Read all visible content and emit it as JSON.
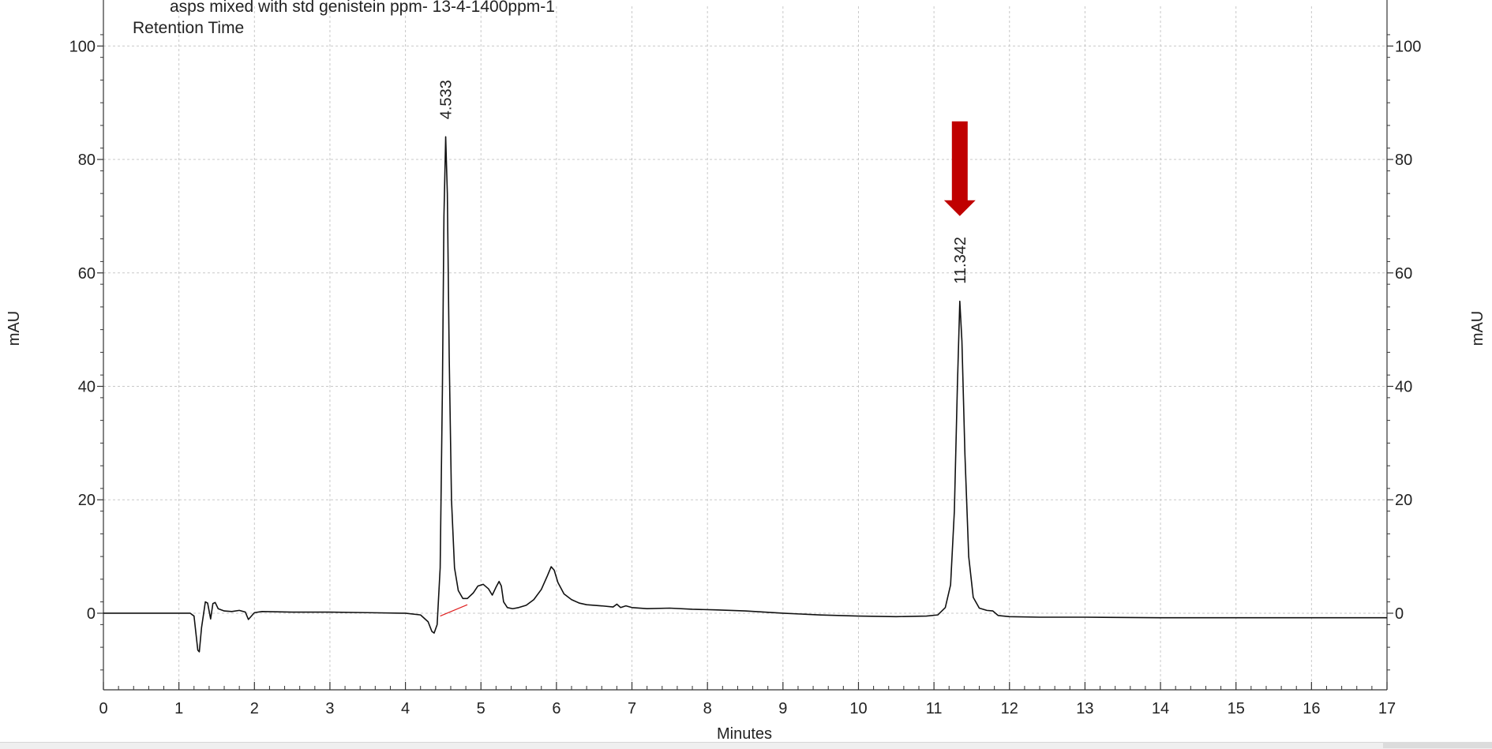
{
  "header": {
    "sample_name": "asps mixed with std genistein ppm- 13-4-1400ppm-1",
    "trace_label": "Retention Time"
  },
  "chart_data": {
    "type": "line",
    "title": "",
    "xlabel": "Minutes",
    "ylabel": "mAU",
    "ylabel_right": "mAU",
    "xlim": [
      0,
      17
    ],
    "ylim": [
      -13.5,
      107
    ],
    "x_ticks": [
      0,
      1,
      2,
      3,
      4,
      5,
      6,
      7,
      8,
      9,
      10,
      11,
      12,
      13,
      14,
      15,
      16,
      17
    ],
    "y_ticks": [
      0,
      20,
      40,
      60,
      80,
      100
    ],
    "grid": true,
    "legend": "none",
    "colors": {
      "trace": "#111111",
      "baseline": "#e02020",
      "arrow": "#c00000",
      "grid": "#c8c8c8"
    },
    "series": [
      {
        "x": [
          0,
          1.0,
          1.15,
          1.2,
          1.25,
          1.27,
          1.3,
          1.35,
          1.38,
          1.42,
          1.45,
          1.48,
          1.52,
          1.6,
          1.7,
          1.8,
          1.88,
          1.92,
          2.0,
          2.1,
          2.5,
          3.0,
          3.5,
          4.0,
          4.2,
          4.3,
          4.35,
          4.38,
          4.42,
          4.46,
          4.49,
          4.51,
          4.533,
          4.555,
          4.58,
          4.61,
          4.65,
          4.7,
          4.76,
          4.82,
          4.9,
          4.96,
          5.03,
          5.1,
          5.15,
          5.2,
          5.24,
          5.27,
          5.3,
          5.35,
          5.42,
          5.5,
          5.6,
          5.7,
          5.8,
          5.88,
          5.93,
          5.97,
          6.02,
          6.1,
          6.2,
          6.3,
          6.4,
          6.6,
          6.75,
          6.8,
          6.85,
          6.92,
          7.0,
          7.2,
          7.5,
          7.8,
          8.1,
          8.5,
          9.0,
          9.5,
          10.0,
          10.5,
          10.9,
          11.05,
          11.15,
          11.22,
          11.27,
          11.31,
          11.342,
          11.37,
          11.41,
          11.46,
          11.52,
          11.6,
          11.7,
          11.78,
          11.85,
          12.0,
          12.4,
          13.0,
          14.0,
          15.0,
          16.0,
          17.0
        ],
        "y": [
          0,
          0,
          0,
          -0.5,
          -6.5,
          -6.8,
          -2.5,
          2.0,
          1.8,
          -1.0,
          1.7,
          1.9,
          0.8,
          0.4,
          0.3,
          0.5,
          0.2,
          -1.1,
          0.1,
          0.3,
          0.2,
          0.2,
          0.1,
          0.0,
          -0.3,
          -1.5,
          -3.2,
          -3.5,
          -2.0,
          8.0,
          40.0,
          70.0,
          84.0,
          74.0,
          45.0,
          20.0,
          8.0,
          4.0,
          2.6,
          2.6,
          3.6,
          4.8,
          5.1,
          4.3,
          3.2,
          4.6,
          5.6,
          4.8,
          2.0,
          1.0,
          0.8,
          1.0,
          1.4,
          2.4,
          4.2,
          6.6,
          8.2,
          7.6,
          5.4,
          3.4,
          2.4,
          1.8,
          1.5,
          1.3,
          1.1,
          1.6,
          1.0,
          1.3,
          1.0,
          0.8,
          0.9,
          0.7,
          0.6,
          0.4,
          0.0,
          -0.3,
          -0.5,
          -0.6,
          -0.5,
          -0.3,
          1.0,
          5.0,
          18.0,
          40.0,
          55.0,
          48.0,
          28.0,
          10.0,
          2.8,
          0.9,
          0.5,
          0.4,
          -0.4,
          -0.6,
          -0.7,
          -0.7,
          -0.8,
          -0.8,
          -0.8,
          -0.8
        ]
      }
    ],
    "integration_baseline": {
      "x": [
        4.46,
        4.82
      ],
      "y": [
        -0.5,
        1.5
      ]
    },
    "peaks": [
      {
        "retention_time": 11.342,
        "label": "11.342",
        "apex": 55.0,
        "arrow": true
      },
      {
        "retention_time": 4.533,
        "label": "4.533",
        "apex": 84.0,
        "arrow": false
      }
    ]
  }
}
